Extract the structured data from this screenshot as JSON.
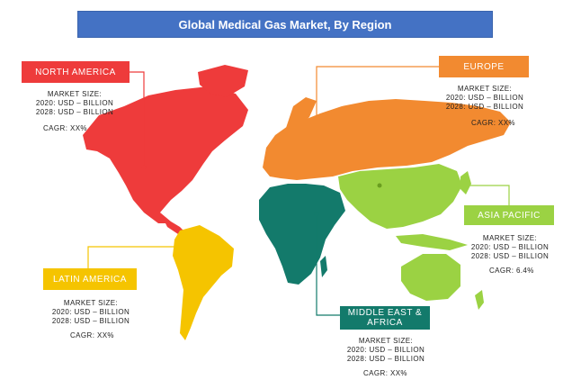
{
  "title": "Global Medical Gas Market, By Region",
  "regions": {
    "north_america": {
      "label": "NORTH AMERICA",
      "market_size": "MARKET SIZE:",
      "y2020": "2020: USD – BILLION",
      "y2028": "2028: USD – BILLION",
      "cagr": "CAGR: XX%",
      "color": "#ee3b3b"
    },
    "europe": {
      "label": "EUROPE",
      "market_size": "MARKET SIZE:",
      "y2020": "2020: USD – BILLION",
      "y2028": "2028: USD – BILLION",
      "cagr": "CAGR: XX%",
      "color": "#f28a30"
    },
    "asia_pacific": {
      "label": "ASIA PACIFIC",
      "market_size": "MARKET SIZE:",
      "y2020": "2020: USD – BILLION",
      "y2028": "2028: USD – BILLION",
      "cagr": "CAGR: 6.4%",
      "color": "#9bd243"
    },
    "latin_america": {
      "label": "LATIN AMERICA",
      "market_size": "MARKET SIZE:",
      "y2020": "2020: USD – BILLION",
      "y2028": "2028: USD – BILLION",
      "cagr": "CAGR: XX%",
      "color": "#f5c400"
    },
    "middle_east_africa": {
      "label": "MIDDLE EAST & AFRICA",
      "market_size": "MARKET SIZE:",
      "y2020": "2020: USD – BILLION",
      "y2028": "2028: USD – BILLION",
      "cagr": "CAGR: XX%",
      "color": "#137a6b"
    }
  }
}
